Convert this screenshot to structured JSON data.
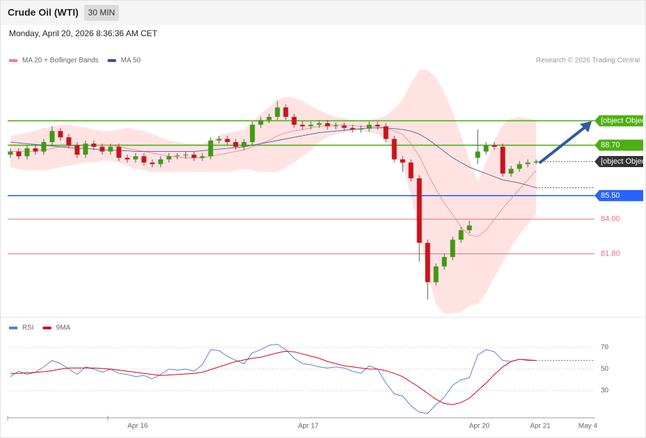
{
  "header": {
    "title": "Crude Oil (WTI)",
    "timeframe": "30 MIN",
    "timestamp": "Monday, April 20, 2026 8:36:36 AM CET",
    "credit": "Research © 2026 Trading Central"
  },
  "chart_data": [
    {
      "type": "candlestick",
      "ylim": [
        77.8,
        93.5
      ],
      "xlim": [
        -0.33,
        70
      ],
      "up_color": "#3f9a12",
      "down_color": "#c8141e",
      "band_color": "#ffe3e3",
      "candles": {
        "open": [
          88.1,
          88.3,
          88.0,
          88.5,
          88.3,
          88.9,
          89.6,
          89.2,
          88.7,
          88.1,
          88.8,
          88.6,
          88.3,
          88.6,
          87.9,
          87.8,
          88.0,
          87.6,
          87.5,
          87.8,
          88.0,
          88.05,
          88.1,
          87.9,
          88.0,
          89.0,
          89.1,
          88.9,
          88.6,
          88.9,
          90.0,
          90.3,
          90.5,
          91.1,
          90.5,
          90.0,
          89.9,
          90.0,
          90.1,
          89.9,
          89.95,
          89.8,
          89.7,
          89.75,
          90.0,
          89.9,
          89.1,
          87.8,
          87.6,
          86.6,
          82.5,
          80.0,
          81.0,
          81.6,
          82.7,
          83.3,
          87.9,
          88.3,
          88.7,
          88.6,
          86.9,
          87.2,
          87.5,
          87.6
        ],
        "high": [
          88.5,
          88.5,
          88.7,
          88.7,
          89.1,
          89.9,
          89.8,
          89.4,
          88.9,
          89.0,
          89.0,
          88.8,
          88.8,
          88.8,
          88.1,
          88.2,
          88.2,
          87.8,
          88.0,
          88.2,
          88.2,
          88.3,
          88.3,
          88.2,
          89.2,
          89.3,
          89.3,
          89.1,
          89.1,
          90.2,
          90.5,
          90.7,
          91.5,
          91.3,
          90.7,
          90.2,
          90.2,
          90.3,
          90.3,
          90.15,
          90.15,
          90.0,
          89.95,
          90.2,
          90.2,
          90.1,
          89.3,
          88.0,
          87.8,
          86.8,
          82.7,
          81.2,
          81.8,
          82.9,
          83.5,
          83.9,
          89.7,
          88.9,
          88.9,
          88.8,
          87.4,
          87.7,
          87.8,
          87.8
        ],
        "low": [
          87.9,
          87.8,
          87.8,
          88.1,
          88.1,
          88.7,
          89.0,
          88.5,
          87.9,
          87.9,
          88.4,
          88.1,
          88.1,
          87.7,
          87.6,
          87.6,
          87.4,
          87.3,
          87.3,
          87.6,
          87.8,
          87.85,
          87.7,
          87.7,
          87.8,
          88.8,
          88.7,
          88.4,
          88.4,
          88.7,
          89.8,
          90.1,
          90.3,
          90.3,
          89.8,
          89.7,
          89.7,
          89.8,
          89.7,
          89.7,
          89.6,
          89.5,
          89.5,
          89.55,
          89.7,
          88.9,
          87.6,
          87.0,
          86.4,
          81.3,
          78.9,
          79.8,
          80.8,
          81.4,
          82.5,
          83.1,
          87.5,
          88.1,
          88.4,
          86.7,
          86.7,
          87.0,
          87.3,
          87.5
        ],
        "close": [
          88.3,
          88.0,
          88.5,
          88.3,
          88.9,
          89.6,
          89.2,
          88.7,
          88.1,
          88.8,
          88.6,
          88.3,
          88.6,
          87.9,
          87.8,
          88.0,
          87.6,
          87.5,
          87.8,
          88.0,
          88.05,
          88.1,
          87.9,
          88.0,
          89.0,
          89.1,
          88.9,
          88.6,
          88.9,
          90.0,
          90.3,
          90.5,
          91.1,
          90.5,
          90.0,
          89.9,
          90.0,
          90.1,
          89.9,
          89.95,
          89.8,
          89.7,
          89.75,
          90.0,
          89.9,
          89.1,
          87.8,
          87.6,
          86.6,
          82.5,
          80.0,
          81.0,
          81.6,
          82.7,
          83.3,
          83.6,
          88.3,
          88.7,
          88.6,
          86.9,
          87.2,
          87.5,
          87.6,
          87.66
        ]
      },
      "series": [
        {
          "name": "MA 20 + Bollinger Bands",
          "color": "#f08080",
          "values": [
            88.3,
            88.3,
            88.3,
            88.35,
            88.4,
            88.5,
            88.6,
            88.65,
            88.65,
            88.7,
            88.7,
            88.7,
            88.7,
            88.6,
            88.5,
            88.4,
            88.3,
            88.2,
            88.1,
            88.0,
            87.95,
            87.9,
            87.9,
            87.9,
            88.0,
            88.1,
            88.2,
            88.3,
            88.4,
            88.6,
            88.8,
            89.0,
            89.3,
            89.5,
            89.6,
            89.7,
            89.8,
            89.9,
            89.95,
            90.0,
            90.0,
            89.95,
            89.9,
            89.9,
            89.9,
            89.8,
            89.6,
            89.4,
            88.8,
            88.0,
            86.9,
            85.9,
            85.0,
            84.3,
            83.5,
            83.0,
            82.9,
            83.3,
            84.0,
            84.7,
            85.3,
            85.9,
            86.5,
            87.1
          ],
          "upper": [
            89.3,
            89.4,
            89.5,
            89.6,
            89.8,
            89.9,
            90.0,
            90.0,
            89.9,
            89.8,
            89.7,
            89.6,
            89.6,
            89.7,
            89.8,
            89.7,
            89.6,
            89.4,
            89.2,
            89.0,
            88.9,
            88.8,
            88.8,
            88.8,
            89.0,
            89.3,
            89.5,
            89.6,
            89.7,
            90.2,
            90.7,
            91.1,
            91.6,
            91.8,
            91.7,
            91.5,
            91.2,
            90.9,
            90.7,
            90.5,
            90.4,
            90.3,
            90.3,
            90.3,
            90.4,
            90.6,
            91.0,
            91.6,
            92.6,
            93.5,
            93.5,
            93.0,
            92.0,
            90.8,
            89.3,
            87.8,
            86.4,
            87.6,
            89.0,
            90.0,
            90.4,
            90.5,
            90.4,
            90.3
          ],
          "lower": [
            87.3,
            87.2,
            87.1,
            87.1,
            87.1,
            87.2,
            87.3,
            87.4,
            87.5,
            87.6,
            87.6,
            87.7,
            87.7,
            87.6,
            87.4,
            87.2,
            87.1,
            87.0,
            87.0,
            87.0,
            87.0,
            87.0,
            87.0,
            87.0,
            87.0,
            87.0,
            87.0,
            87.1,
            87.2,
            87.1,
            87.0,
            87.0,
            87.0,
            87.3,
            87.6,
            88.0,
            88.4,
            88.9,
            89.2,
            89.4,
            89.5,
            89.6,
            89.6,
            89.5,
            89.4,
            89.0,
            88.2,
            87.3,
            85.6,
            83.0,
            80.5,
            78.6,
            78.0,
            78.0,
            78.1,
            78.5,
            78.6,
            79.3,
            80.3,
            81.3,
            82.2,
            83.0,
            83.7,
            84.3
          ]
        },
        {
          "name": "MA 50",
          "color": "#2e5597",
          "values": [
            88.9,
            88.85,
            88.8,
            88.75,
            88.7,
            88.65,
            88.6,
            88.55,
            88.5,
            88.5,
            88.45,
            88.4,
            88.4,
            88.35,
            88.35,
            88.3,
            88.3,
            88.3,
            88.3,
            88.3,
            88.3,
            88.3,
            88.3,
            88.35,
            88.4,
            88.45,
            88.5,
            88.55,
            88.6,
            88.7,
            88.8,
            88.9,
            89.0,
            89.1,
            89.2,
            89.3,
            89.4,
            89.5,
            89.55,
            89.6,
            89.65,
            89.7,
            89.75,
            89.8,
            89.8,
            89.8,
            89.75,
            89.7,
            89.6,
            89.4,
            89.1,
            88.7,
            88.3,
            87.9,
            87.6,
            87.3,
            87.1,
            86.9,
            86.7,
            86.5,
            86.4,
            86.3,
            86.15,
            86.0
          ]
        }
      ],
      "levels": [
        {
          "value": 90.25,
          "color": "#4caf14",
          "line": "solid",
          "tag": "filled"
        },
        {
          "value": 88.7,
          "label": "88.70",
          "color": "#4caf14",
          "line": "solid",
          "tag": "filled"
        },
        {
          "value": 87.66,
          "color": "#333333",
          "line": "dotted",
          "tag": "filled"
        },
        {
          "value": 85.5,
          "label": "85.50",
          "color": "#2962ff",
          "line": "solid",
          "tag": "filled"
        },
        {
          "value": 84,
          "label": "84.00",
          "color": "#e57373",
          "line": "solid",
          "tag": "text"
        },
        {
          "value": 81.8,
          "label": "81.80",
          "color": "#e57373",
          "line": "solid",
          "tag": "text"
        }
      ]
    },
    {
      "type": "line",
      "ylim": [
        5,
        80
      ],
      "yticks": [
        30,
        50,
        70
      ],
      "xlim": [
        -0.33,
        70
      ],
      "xticks": [
        {
          "value": 15.25,
          "label": "Apr 16"
        },
        {
          "value": 35.7,
          "label": "Apr 17"
        },
        {
          "value": 56.2,
          "label": "Apr 20"
        },
        {
          "value": 63.5,
          "label": "Apr 21"
        },
        {
          "value": 69.2,
          "label": "May 4"
        }
      ],
      "series": [
        {
          "name": "RSI",
          "color": "#5b7fd6",
          "values": [
            43,
            48,
            45,
            47,
            52,
            58,
            55,
            50,
            45,
            52,
            50,
            47,
            50,
            46,
            45,
            43,
            44,
            41,
            45,
            50,
            49,
            50,
            48,
            54,
            68,
            67,
            62,
            58,
            55,
            65,
            68,
            72,
            73,
            68,
            60,
            55,
            54,
            52,
            51,
            52,
            51,
            48,
            46,
            53,
            50,
            37,
            27,
            25,
            16,
            10,
            9,
            17,
            24,
            35,
            40,
            42,
            63,
            68,
            66,
            58,
            57,
            59,
            58,
            58
          ]
        },
        {
          "name": "9MA",
          "color": "#d0021b",
          "values": [
            46,
            46,
            46.5,
            47,
            47.5,
            48.5,
            50,
            51,
            51,
            51,
            51,
            50.5,
            50,
            49,
            48,
            47,
            46,
            45,
            44,
            44.5,
            45,
            45.5,
            46,
            47,
            49.5,
            52,
            54.5,
            57,
            58.5,
            60,
            61,
            63,
            65,
            66.5,
            66,
            64,
            62,
            60,
            57,
            55,
            53,
            52,
            51,
            50,
            50,
            48.5,
            46,
            43,
            38,
            33,
            27.5,
            22,
            18,
            17,
            19,
            23,
            30,
            37,
            45,
            52,
            57,
            59,
            58.5,
            58
          ]
        }
      ]
    }
  ]
}
